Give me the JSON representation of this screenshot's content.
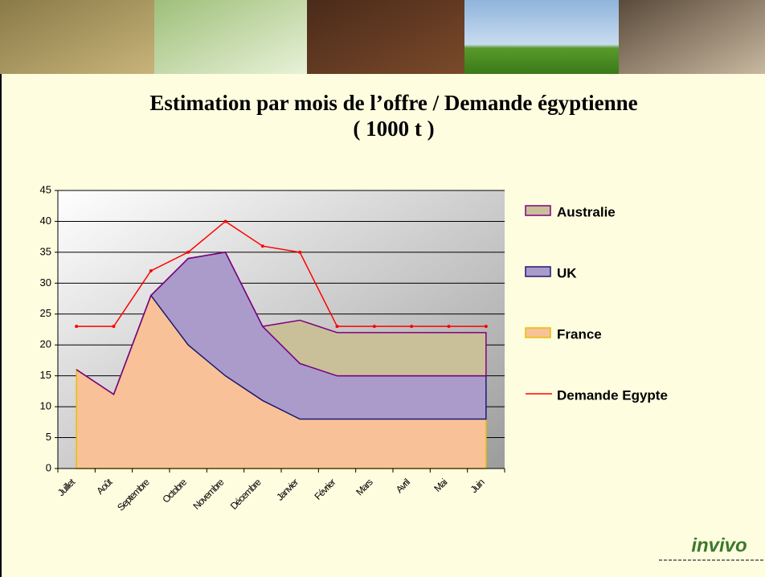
{
  "chart_data": {
    "type": "stacked-area-line",
    "title": "Estimation par mois de l’offre / Demande égyptienne",
    "subtitle": "( 1000 t )",
    "categories": [
      "Juillet",
      "Août",
      "Septembre",
      "Octobre",
      "Novembre",
      "Décembre",
      "Janvier",
      "Février",
      "Mars",
      "Avril",
      "Mai",
      "Juin"
    ],
    "series": [
      {
        "name": "France",
        "type": "area",
        "color": "#f9c197",
        "border": "#e8c000",
        "values": [
          16,
          12,
          28,
          20,
          15,
          11,
          8,
          8,
          8,
          8,
          8,
          8
        ]
      },
      {
        "name": "UK",
        "type": "area",
        "color": "#ab9bcb",
        "border": "#1a1a78",
        "values": [
          0,
          0,
          0,
          14,
          20,
          12,
          9,
          7,
          7,
          7,
          7,
          7
        ]
      },
      {
        "name": "Australie",
        "type": "area",
        "color": "#c9c099",
        "border": "#800080",
        "values": [
          0,
          0,
          0,
          0,
          0,
          0,
          7,
          7,
          7,
          7,
          7,
          7
        ]
      },
      {
        "name": "Demande Egypte",
        "type": "line",
        "color": "#ff0000",
        "values": [
          23,
          23,
          32,
          35,
          40,
          36,
          35,
          23,
          23,
          23,
          23,
          23
        ]
      }
    ],
    "ylim": [
      0,
      45
    ],
    "yticks": [
      0,
      5,
      10,
      15,
      20,
      25,
      30,
      35,
      40,
      45
    ],
    "grid": true,
    "legend": "right"
  },
  "logo": "invivo"
}
